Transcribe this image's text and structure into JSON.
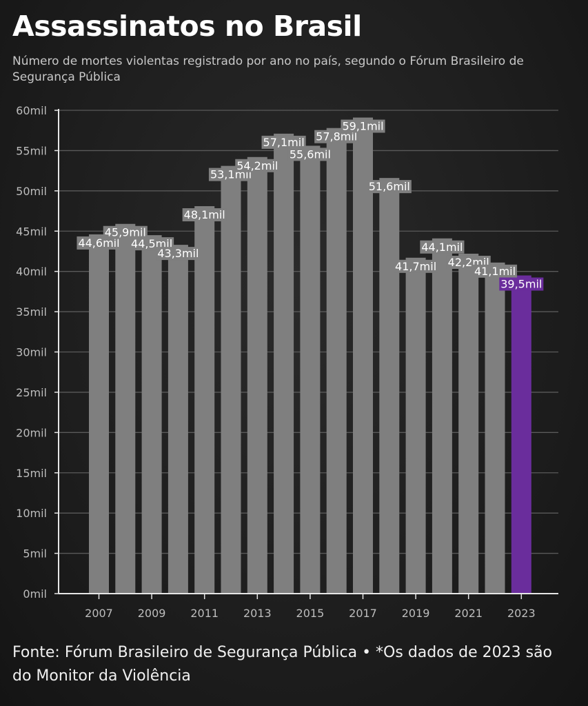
{
  "header": {
    "title": "Assassinatos no Brasil",
    "subtitle": "Número de mortes violentas registrado por ano no país, segundo o Fórum Brasileiro de Segurança Pública"
  },
  "footer": {
    "source": "Fonte: Fórum Brasileiro de Segurança Pública • *Os dados de 2023 são do Monitor da Violência"
  },
  "colors": {
    "bar": "#7f7f7f",
    "highlight": "#6a2d9c",
    "grid": "#5a5a5a",
    "axis": "#e6e6e6"
  },
  "chart_data": {
    "type": "bar",
    "categories": [
      "2007",
      "2008",
      "2009",
      "2010",
      "2011",
      "2012",
      "2013",
      "2014",
      "2015",
      "2016",
      "2017",
      "2018",
      "2019",
      "2020",
      "2021",
      "2022",
      "2023"
    ],
    "values": [
      44.6,
      45.9,
      44.5,
      43.3,
      48.1,
      53.1,
      54.2,
      57.1,
      55.6,
      57.8,
      59.1,
      51.6,
      41.7,
      44.1,
      42.2,
      41.1,
      39.5
    ],
    "value_labels": [
      "44,6mil",
      "45,9mil",
      "44,5mil",
      "43,3mil",
      "48,1mil",
      "53,1mil",
      "54,2mil",
      "57,1mil",
      "55,6mil",
      "57,8mil",
      "59,1mil",
      "51,6mil",
      "41,7mil",
      "44,1mil",
      "42,2mil",
      "41,1mil",
      "39,5mil"
    ],
    "highlight_category": "2023",
    "x_tick_labels": [
      "2007",
      "2009",
      "2011",
      "2013",
      "2015",
      "2017",
      "2019",
      "2021",
      "2023"
    ],
    "y_ticks": [
      0,
      5,
      10,
      15,
      20,
      25,
      30,
      35,
      40,
      45,
      50,
      55,
      60
    ],
    "y_tick_labels": [
      "0mil",
      "5mil",
      "10mil",
      "15mil",
      "20mil",
      "25mil",
      "30mil",
      "35mil",
      "40mil",
      "45mil",
      "50mil",
      "55mil",
      "60mil"
    ],
    "ylim": [
      0,
      60
    ],
    "grid": true,
    "legend": "none"
  }
}
